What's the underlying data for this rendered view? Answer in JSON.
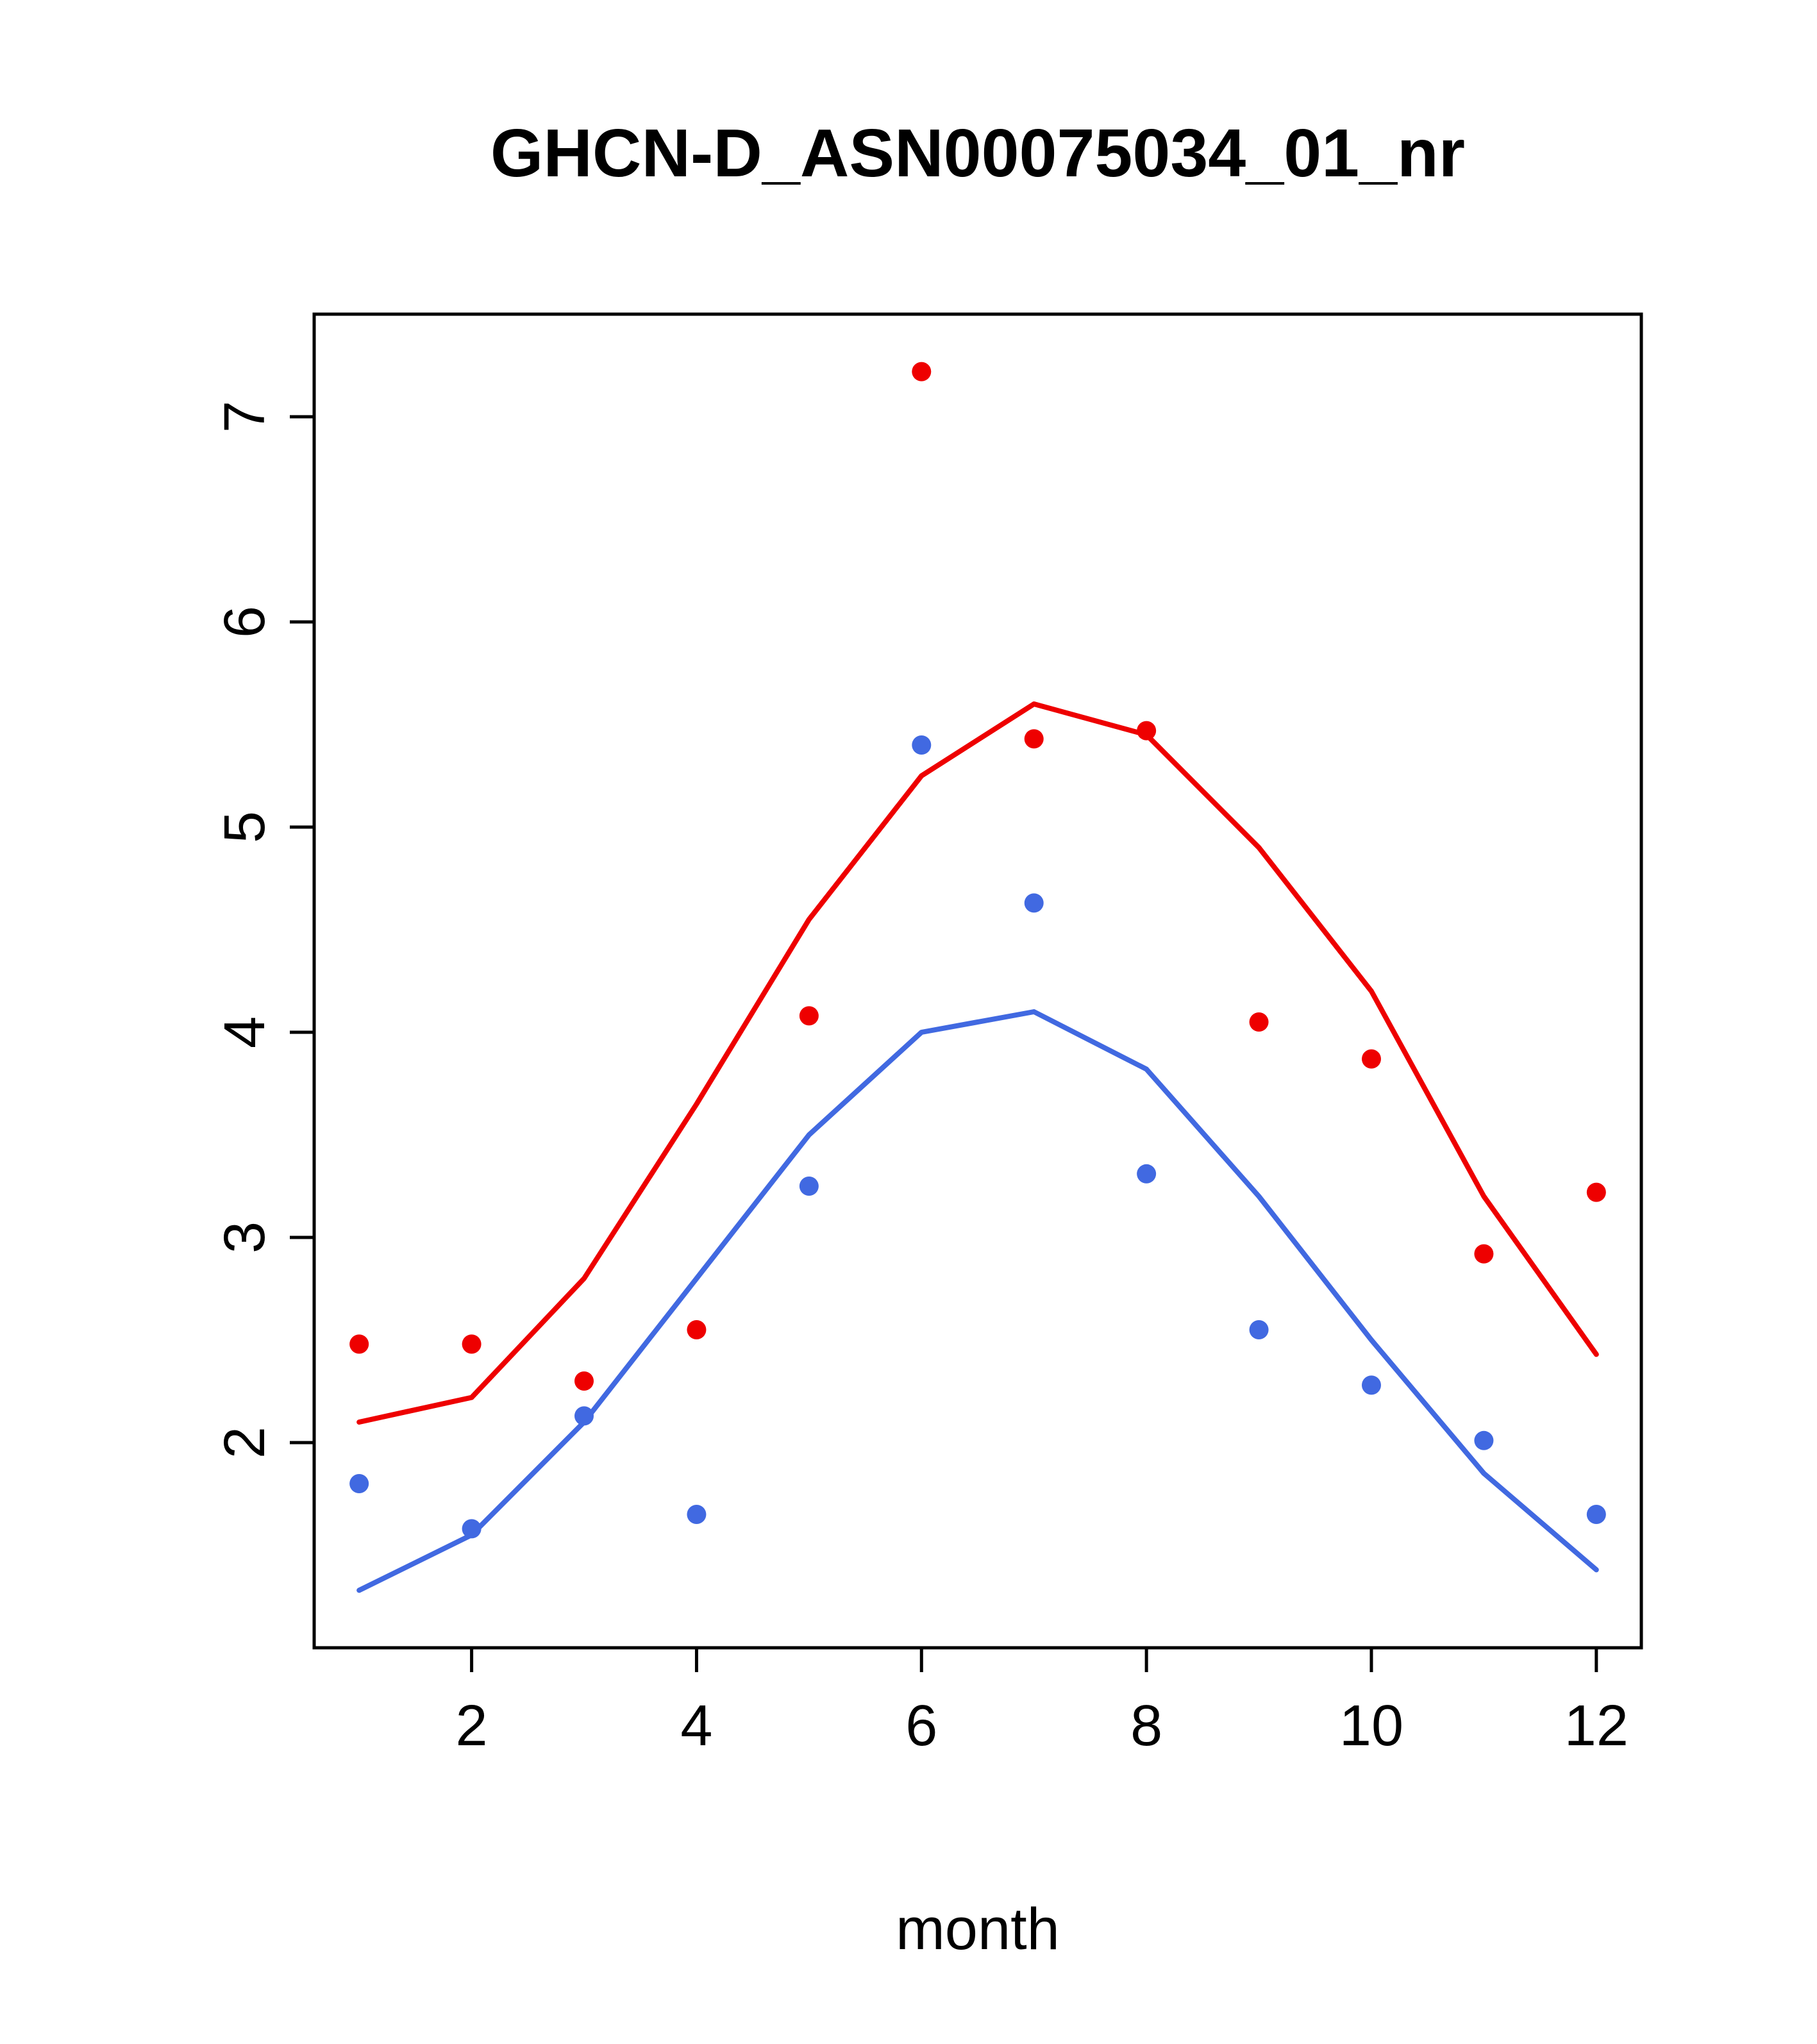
{
  "title": "GHCN-D_ASN00075034_01_nr",
  "chart_data": {
    "type": "line",
    "title": "GHCN-D_ASN00075034_01_nr",
    "xlabel": "month",
    "ylabel": "",
    "x": [
      1,
      2,
      3,
      4,
      5,
      6,
      7,
      8,
      9,
      10,
      11,
      12
    ],
    "xlim": [
      0.6,
      12.4
    ],
    "ylim": [
      1.0,
      7.5
    ],
    "x_ticks": [
      2,
      4,
      6,
      8,
      10,
      12
    ],
    "y_ticks": [
      2,
      3,
      4,
      5,
      6,
      7
    ],
    "grid": false,
    "legend_position": "none",
    "colors": {
      "red": "#EE0000",
      "blue": "#4169E1",
      "axis": "#000000"
    },
    "series": [
      {
        "name": "red-line-smooth",
        "kind": "line",
        "color": "#EE0000",
        "values": [
          2.1,
          2.22,
          2.8,
          3.65,
          4.55,
          5.25,
          5.6,
          5.45,
          4.9,
          4.2,
          3.2,
          2.43
        ]
      },
      {
        "name": "blue-line-smooth",
        "kind": "line",
        "color": "#4169E1",
        "values": [
          1.28,
          1.55,
          2.1,
          2.8,
          3.5,
          4.0,
          4.1,
          3.82,
          3.2,
          2.5,
          1.85,
          1.38
        ]
      },
      {
        "name": "red-points",
        "kind": "points",
        "color": "#EE0000",
        "values": [
          2.48,
          2.48,
          2.3,
          2.55,
          4.08,
          7.22,
          5.43,
          5.47,
          4.05,
          3.87,
          2.92,
          3.22
        ]
      },
      {
        "name": "blue-points",
        "kind": "points",
        "color": "#4169E1",
        "values": [
          1.8,
          1.58,
          2.13,
          1.65,
          3.25,
          5.4,
          4.63,
          3.31,
          2.55,
          2.28,
          2.01,
          1.65
        ]
      }
    ]
  }
}
